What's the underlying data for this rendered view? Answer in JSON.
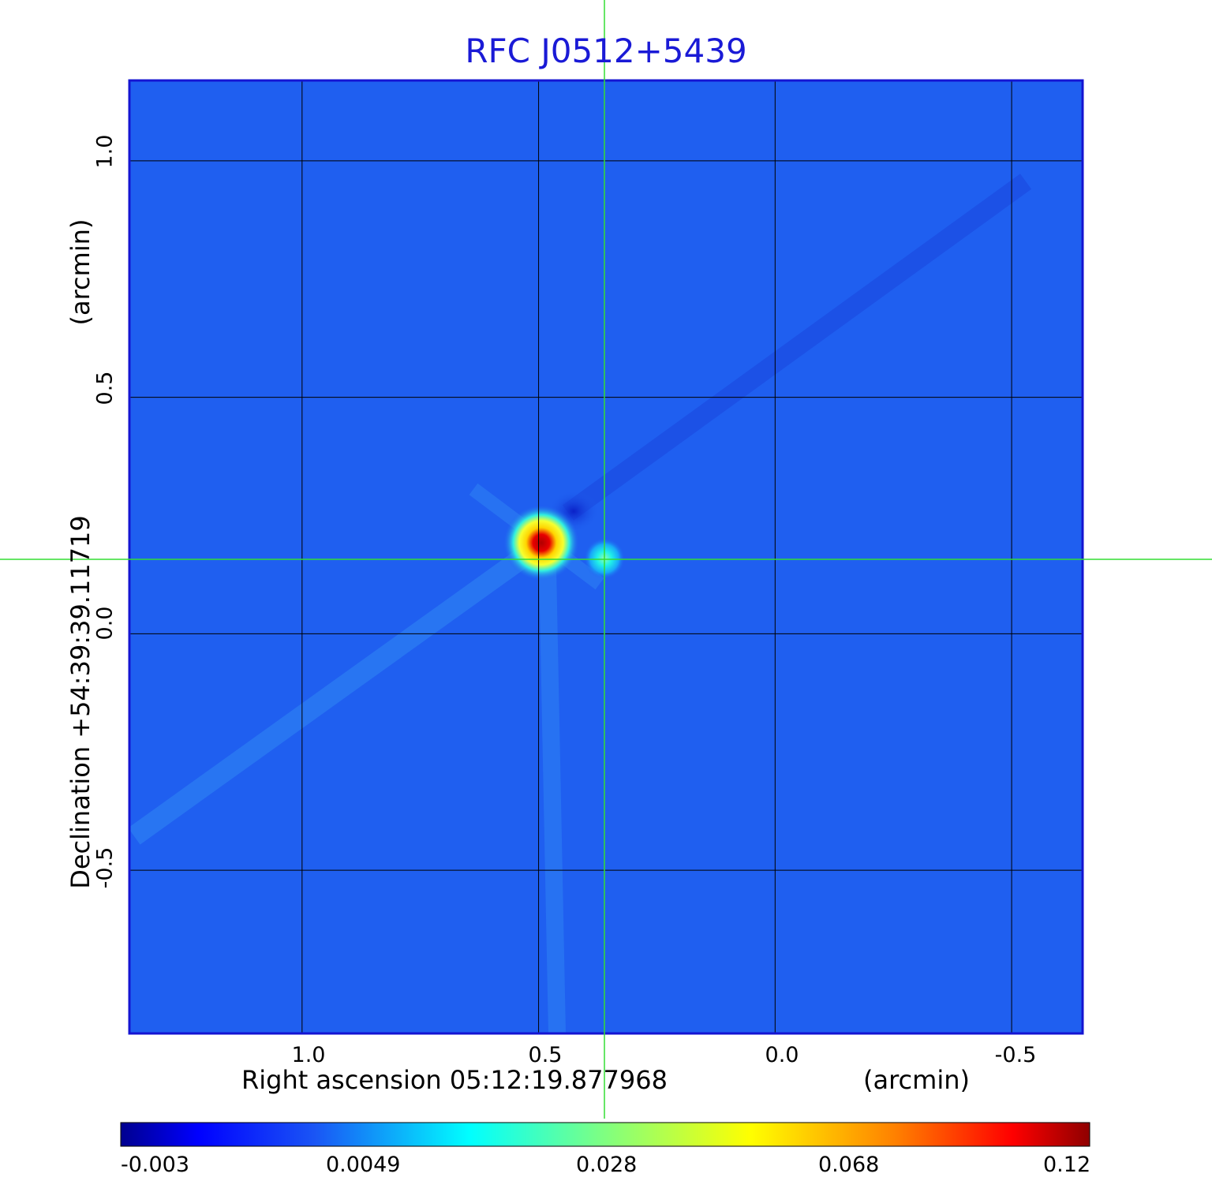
{
  "chart_data": {
    "type": "heatmap",
    "title": "RFC J0512+5439",
    "xlabel": "Right ascension  05:12:19.877968",
    "xunit": "(arcmin)",
    "ylabel": "Declination  +54:39:39.11719",
    "yunit": "(arcmin)",
    "xlim": [
      1.365,
      -0.65
    ],
    "ylim": [
      -0.845,
      1.17
    ],
    "grid": true,
    "x_axis_reversed": true,
    "x_ticks": [
      {
        "value": 1.0,
        "label": "1.0"
      },
      {
        "value": 0.5,
        "label": "0.5"
      },
      {
        "value": 0.0,
        "label": "0.0"
      },
      {
        "value": -0.5,
        "label": "-0.5"
      }
    ],
    "y_ticks": [
      {
        "value": 1.0,
        "label": "1.0"
      },
      {
        "value": 0.5,
        "label": "0.5"
      },
      {
        "value": 0.0,
        "label": "0.0"
      },
      {
        "value": -0.5,
        "label": "-0.5"
      }
    ],
    "crosshair": {
      "x": 0.36,
      "y": 0.155,
      "color": "#33dd33"
    },
    "sources": [
      {
        "x": 0.49,
        "y": 0.19,
        "peak": 0.12
      },
      {
        "x": 0.36,
        "y": 0.155,
        "peak": 0.03
      }
    ],
    "colorbar": {
      "colormap": "jet",
      "tick_labels": [
        "-0.003",
        "0.0049",
        "0.028",
        "0.068",
        "0.12"
      ],
      "min": -0.003,
      "max": 0.12
    },
    "background_color": "#1f5ff0",
    "frame_color": "#1414d2"
  }
}
